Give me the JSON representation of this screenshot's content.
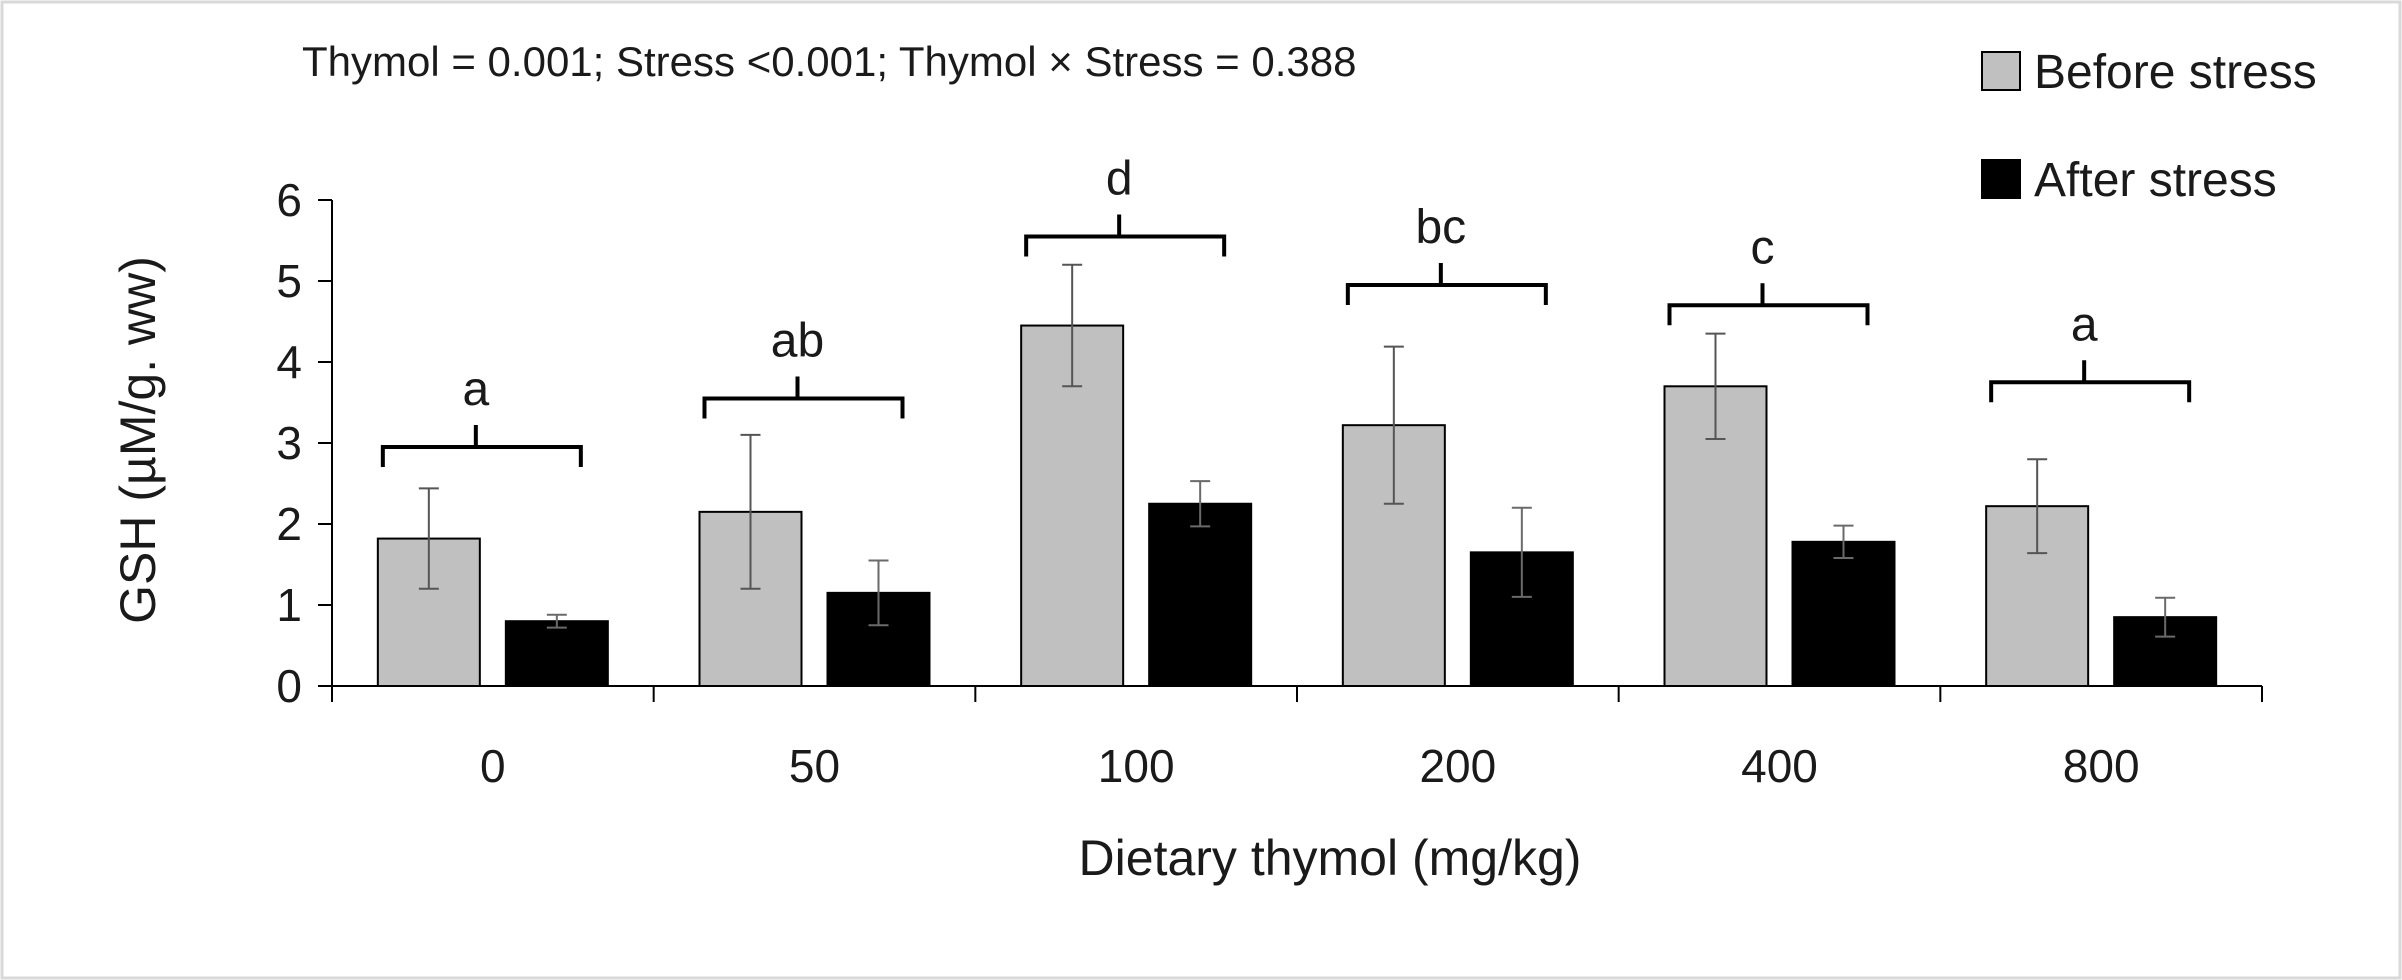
{
  "chart_data": {
    "type": "bar",
    "title": "Thymol = 0.001; Stress <0.001; Thymol × Stress = 0.388",
    "xlabel": "Dietary thymol (mg/kg)",
    "ylabel": "GSH (µM/g. ww)",
    "ylim": [
      0,
      6
    ],
    "yticks": [
      0,
      1,
      2,
      3,
      4,
      5,
      6
    ],
    "categories": [
      "0",
      "50",
      "100",
      "200",
      "400",
      "800"
    ],
    "series": [
      {
        "name": "Before stress",
        "color": "#c0c0c0",
        "values": [
          1.82,
          2.15,
          4.45,
          3.22,
          3.7,
          2.22
        ],
        "errors": [
          0.62,
          0.95,
          0.75,
          0.97,
          0.65,
          0.58
        ]
      },
      {
        "name": "After stress",
        "color": "#000000",
        "values": [
          0.8,
          1.15,
          2.25,
          1.65,
          1.78,
          0.85
        ],
        "errors": [
          0.08,
          0.4,
          0.28,
          0.55,
          0.2,
          0.24
        ]
      }
    ],
    "significance_letters": [
      "a",
      "ab",
      "d",
      "bc",
      "c",
      "a"
    ],
    "bracket_levels": [
      2.95,
      3.55,
      5.55,
      4.95,
      4.7,
      3.75
    ],
    "legend_position": "top-right",
    "grid": false
  }
}
